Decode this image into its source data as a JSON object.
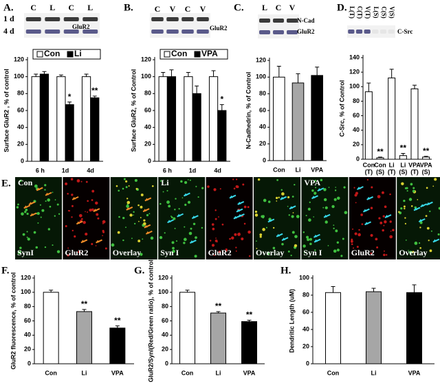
{
  "blots": [
    {
      "panel": "A.",
      "lanes": [
        "C",
        "L",
        "C",
        "L"
      ],
      "rows": [
        "1 d",
        "4 d"
      ],
      "proteins": [
        "GluR2"
      ]
    },
    {
      "panel": "B.",
      "lanes": [
        "C",
        "V",
        "C",
        "V"
      ],
      "rows": [
        "1 d",
        "4 d"
      ],
      "proteins": [
        "GluR2"
      ]
    },
    {
      "panel": "C.",
      "lanes": [
        "L",
        "C",
        "V"
      ],
      "proteins": [
        "N-Cad",
        "GluR2"
      ]
    },
    {
      "panel": "D.",
      "lanes": [
        "L(T)",
        "C(T)",
        "V(T)",
        "L(S)",
        "C(S)",
        "V(S)"
      ],
      "proteins": [
        "C-Src"
      ]
    }
  ],
  "microscopy": {
    "panel": "E.",
    "groups": [
      "Con",
      "Li",
      "VPA"
    ],
    "channels": [
      "SynI",
      "GluR2",
      "Overlay",
      "Syn I",
      "GluR2",
      "Overlay",
      "Syn I",
      "GluR2",
      "Overlay"
    ]
  },
  "chart_data": [
    {
      "type": "bar",
      "ylabel": "Surface GluR2 , % of control",
      "categories": [
        "6 h",
        "1d",
        "4d"
      ],
      "series": [
        {
          "name": "Con",
          "color": "#ffffff",
          "values": [
            100,
            100,
            100
          ],
          "errors": [
            3,
            2,
            3
          ],
          "significance": [
            null,
            null,
            null
          ]
        },
        {
          "name": "Li",
          "color": "#000000",
          "values": [
            103,
            67,
            75
          ],
          "errors": [
            3,
            3,
            2
          ],
          "significance": [
            null,
            "*",
            "**"
          ]
        }
      ],
      "ylim": [
        0,
        120
      ],
      "yticks": [
        0,
        20,
        40,
        60,
        80,
        100,
        120
      ],
      "legend": "top"
    },
    {
      "type": "bar",
      "ylabel": "Surface GluR2, % of Control",
      "categories": [
        "6 h",
        "1d",
        "4d"
      ],
      "series": [
        {
          "name": "Con",
          "color": "#ffffff",
          "values": [
            100,
            100,
            100
          ],
          "errors": [
            5,
            5,
            7
          ],
          "significance": [
            null,
            null,
            null
          ]
        },
        {
          "name": "VPA",
          "color": "#000000",
          "values": [
            100,
            80,
            60
          ],
          "errors": [
            8,
            9,
            7
          ],
          "significance": [
            null,
            null,
            "*"
          ]
        }
      ],
      "ylim": [
        0,
        120
      ],
      "yticks": [
        0,
        20,
        40,
        60,
        80,
        100,
        120
      ],
      "legend": "top"
    },
    {
      "type": "bar",
      "ylabel": "N-Cadhedrin, % of Control",
      "categories": [
        "Con",
        "Li",
        "VPA"
      ],
      "values": [
        100,
        93,
        102
      ],
      "errors": [
        13,
        11,
        10
      ],
      "colors": [
        "#ffffff",
        "#a6a6a6",
        "#000000"
      ],
      "ylim": [
        0,
        120
      ],
      "yticks": [
        0,
        20,
        40,
        60,
        80,
        100,
        120
      ]
    },
    {
      "type": "bar",
      "ylabel": "C-Src, % of Control",
      "categories": [
        [
          "Con",
          "(T)"
        ],
        [
          "Con",
          "(S)"
        ],
        [
          "Li",
          "(T)"
        ],
        [
          "Li",
          "(S)"
        ],
        [
          "VPA",
          "(T)"
        ],
        [
          "VPA",
          "(S)"
        ]
      ],
      "values": [
        93,
        2,
        112,
        5,
        97,
        3
      ],
      "errors": [
        12,
        1,
        12,
        3,
        5,
        1
      ],
      "colors": [
        "#ffffff",
        "#ffffff",
        "#ffffff",
        "#ffffff",
        "#ffffff",
        "#ffffff"
      ],
      "significance": [
        null,
        "**",
        null,
        "**",
        null,
        "**"
      ],
      "ylim": [
        0,
        140
      ],
      "yticks": [
        0,
        20,
        40,
        60,
        80,
        100,
        120,
        140
      ]
    },
    {
      "type": "bar",
      "panel": "F.",
      "ylabel": "GluR2 fluorescence, % of control",
      "categories": [
        "Con",
        "Li",
        "VPA"
      ],
      "values": [
        100,
        73,
        50
      ],
      "errors": [
        3,
        3,
        3
      ],
      "colors": [
        "#ffffff",
        "#a6a6a6",
        "#000000"
      ],
      "significance": [
        null,
        "**",
        "**"
      ],
      "ylim": [
        0,
        120
      ],
      "yticks": [
        0,
        20,
        40,
        60,
        80,
        100,
        120
      ]
    },
    {
      "type": "bar",
      "panel": "G.",
      "ylabel": "GluR2/SynI(Red/Green ratio), % of control",
      "categories": [
        "Con",
        "Li",
        "VPA"
      ],
      "values": [
        100,
        71,
        59
      ],
      "errors": [
        3,
        2,
        2
      ],
      "colors": [
        "#ffffff",
        "#a6a6a6",
        "#000000"
      ],
      "significance": [
        null,
        "**",
        "**"
      ],
      "ylim": [
        0,
        120
      ],
      "yticks": [
        0,
        20,
        40,
        60,
        80,
        100,
        120
      ]
    },
    {
      "type": "bar",
      "panel": "H.",
      "ylabel": "Dendritic Length (uM)",
      "categories": [
        "Con",
        "Li",
        "VPA"
      ],
      "values": [
        83,
        84,
        83
      ],
      "errors": [
        7,
        4,
        9
      ],
      "colors": [
        "#ffffff",
        "#a6a6a6",
        "#000000"
      ],
      "ylim": [
        0,
        100
      ],
      "yticks": [
        0,
        20,
        40,
        60,
        80,
        100
      ]
    }
  ]
}
